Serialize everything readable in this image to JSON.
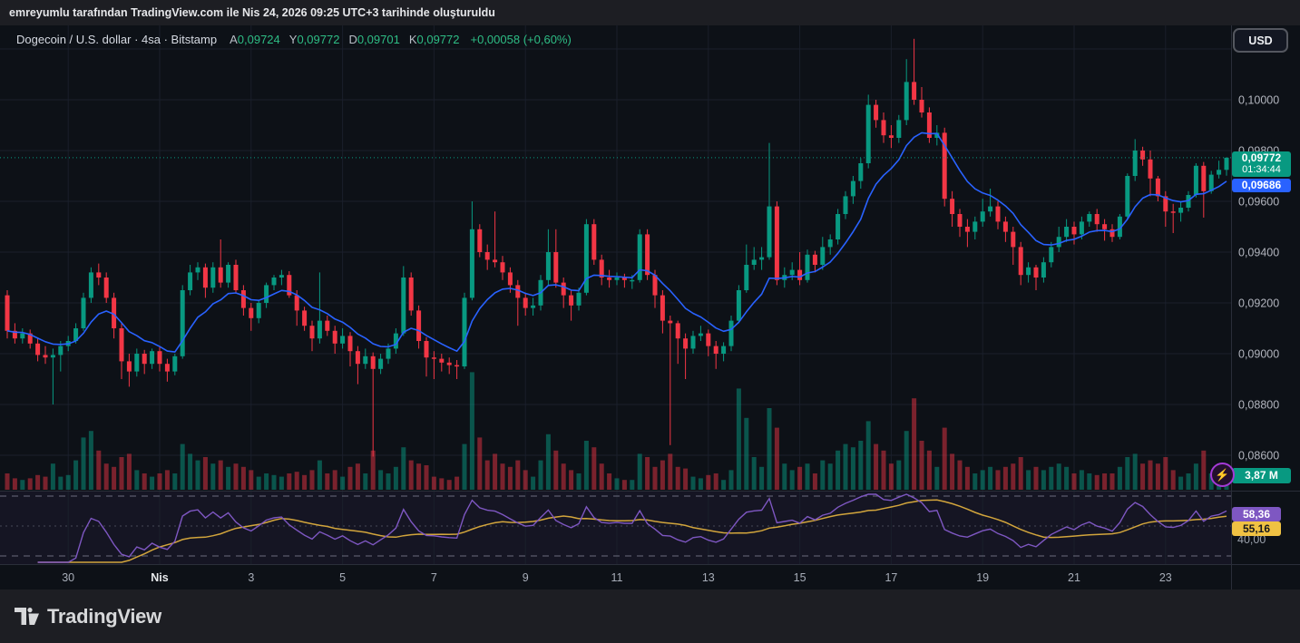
{
  "attribution": "emreyumlu tarafından TradingView.com ile Nis 24, 2026 09:25 UTC+3 tarihinde oluşturuldu",
  "currency_button": "USD",
  "symbol_row": {
    "title": "Dogecoin / U.S. dollar · 4sa · Bitstamp",
    "ohlc": [
      {
        "k": "A",
        "v": "0,09724"
      },
      {
        "k": "Y",
        "v": "0,09772"
      },
      {
        "k": "D",
        "v": "0,09701"
      },
      {
        "k": "K",
        "v": "0,09772"
      }
    ],
    "change": "+0,00058 (+0,60%)"
  },
  "price_axis": {
    "current_badge": {
      "price": "0,09772",
      "countdown": "01:34:44"
    },
    "ma_badge": "0,09686",
    "volume_badge": "3,87 M",
    "lower_axis_label": "40,00"
  },
  "rsi_badges": {
    "rsi": "58,36",
    "rsi_ma": "55,16"
  },
  "footer": {
    "brand": "TradingView"
  },
  "colors": {
    "up": "#089981",
    "down": "#f23645",
    "vol_up": "rgba(8,153,129,0.5)",
    "vol_down": "rgba(242,54,69,0.48)",
    "ma_blue": "#2962ff",
    "rsi_purple": "#7e57c2",
    "rsi_yellow": "#d2a53c",
    "price_line": "#089981",
    "grid": "#1a1f2b",
    "separator": "#2a2e39",
    "axis_text": "#b2b5be",
    "axis_text_dim": "#a7adb8",
    "axis_text_major": "#e8eaed",
    "rsi_pane_bg": "rgba(126,87,194,0.07)",
    "rsi_band_dash": "rgba(178,181,200,0.55)",
    "rsi_mid_dash": "rgba(134,137,150,0.45)"
  },
  "chart_data": {
    "type": "candlestick+volume+rsi",
    "pair": "DOGE/USD",
    "exchange": "Bitstamp",
    "interval": "4sa",
    "unit": 1e-05,
    "ylim": [
      0.0855,
      0.103
    ],
    "current_price": 9772,
    "ma_value": 9686,
    "volume_current_m": 3.87,
    "rsi_current": 58.36,
    "rsi_ma_current": 55.16,
    "rsi_levels": [
      70,
      50,
      30
    ],
    "y_labels": [
      {
        "u": 10000,
        "t": "0,10000"
      },
      {
        "u": 9800,
        "t": "0,09800"
      },
      {
        "u": 9600,
        "t": "0,09600"
      },
      {
        "u": 9400,
        "t": "0,09400"
      },
      {
        "u": 9200,
        "t": "0,09200"
      },
      {
        "u": 9000,
        "t": "0,09000"
      },
      {
        "u": 8800,
        "t": "0,08800"
      },
      {
        "u": 8600,
        "t": "0,08600"
      }
    ],
    "grid_levels": [
      10200,
      10000,
      9800,
      9600,
      9400,
      9200,
      9000,
      8800,
      8600
    ],
    "x_labels": [
      {
        "label": "30",
        "index": 8,
        "major": false
      },
      {
        "label": "Nis",
        "index": 20,
        "major": true
      },
      {
        "label": "3",
        "index": 32,
        "major": false
      },
      {
        "label": "5",
        "index": 44,
        "major": false
      },
      {
        "label": "7",
        "index": 56,
        "major": false
      },
      {
        "label": "9",
        "index": 68,
        "major": false
      },
      {
        "label": "11",
        "index": 80,
        "major": false
      },
      {
        "label": "13",
        "index": 92,
        "major": false
      },
      {
        "label": "15",
        "index": 104,
        "major": false
      },
      {
        "label": "17",
        "index": 116,
        "major": false
      },
      {
        "label": "19",
        "index": 128,
        "major": false
      },
      {
        "label": "21",
        "index": 140,
        "major": false
      },
      {
        "label": "23",
        "index": 152,
        "major": false
      }
    ],
    "candles": [
      [
        9230,
        9250,
        9060,
        9090,
        5
      ],
      [
        9090,
        9120,
        9040,
        9060,
        3.5
      ],
      [
        9060,
        9100,
        9040,
        9080,
        3
      ],
      [
        9080,
        9095,
        9020,
        9040,
        3.5
      ],
      [
        9040,
        9060,
        8970,
        8995,
        4.5
      ],
      [
        8995,
        9030,
        8960,
        8985,
        4
      ],
      [
        8985,
        9020,
        8800,
        8995,
        8
      ],
      [
        8995,
        9050,
        8930,
        9030,
        4
      ],
      [
        9030,
        9070,
        9010,
        9050,
        4.5
      ],
      [
        9050,
        9120,
        9040,
        9100,
        9
      ],
      [
        9100,
        9240,
        9090,
        9220,
        16
      ],
      [
        9220,
        9340,
        9200,
        9320,
        18
      ],
      [
        9320,
        9355,
        9270,
        9300,
        12
      ],
      [
        9300,
        9320,
        9200,
        9220,
        8
      ],
      [
        9220,
        9240,
        9060,
        9100,
        7
      ],
      [
        9100,
        9120,
        8900,
        8970,
        10
      ],
      [
        8970,
        9000,
        8870,
        8930,
        11
      ],
      [
        8930,
        9020,
        8910,
        9000,
        6
      ],
      [
        9000,
        9015,
        8920,
        8960,
        5
      ],
      [
        8960,
        9020,
        8940,
        9010,
        4
      ],
      [
        9010,
        9030,
        8930,
        8960,
        5
      ],
      [
        8960,
        8980,
        8890,
        8930,
        6
      ],
      [
        8930,
        9000,
        8915,
        8990,
        5
      ],
      [
        8990,
        9270,
        8980,
        9250,
        14
      ],
      [
        9250,
        9350,
        9230,
        9320,
        11
      ],
      [
        9320,
        9360,
        9290,
        9340,
        9
      ],
      [
        9340,
        9355,
        9220,
        9260,
        10
      ],
      [
        9260,
        9360,
        9240,
        9340,
        8
      ],
      [
        9340,
        9450,
        9260,
        9280,
        9
      ],
      [
        9280,
        9360,
        9260,
        9350,
        7
      ],
      [
        9350,
        9370,
        9240,
        9250,
        8
      ],
      [
        9250,
        9270,
        9150,
        9180,
        7
      ],
      [
        9180,
        9200,
        9090,
        9140,
        6
      ],
      [
        9140,
        9210,
        9120,
        9200,
        4
      ],
      [
        9200,
        9280,
        9180,
        9270,
        5
      ],
      [
        9270,
        9310,
        9250,
        9300,
        4.5
      ],
      [
        9300,
        9330,
        9270,
        9310,
        4
      ],
      [
        9310,
        9325,
        9220,
        9230,
        5
      ],
      [
        9230,
        9250,
        9110,
        9170,
        5.5
      ],
      [
        9170,
        9185,
        9090,
        9110,
        4.5
      ],
      [
        9110,
        9130,
        9010,
        9060,
        6
      ],
      [
        9060,
        9320,
        9040,
        9130,
        9
      ],
      [
        9130,
        9150,
        9070,
        9090,
        5
      ],
      [
        9090,
        9110,
        9000,
        9040,
        6
      ],
      [
        9040,
        9100,
        9020,
        9070,
        4
      ],
      [
        9070,
        9085,
        8950,
        9010,
        7
      ],
      [
        9010,
        9030,
        8880,
        8960,
        8
      ],
      [
        8960,
        9020,
        8940,
        8990,
        5
      ],
      [
        8990,
        9005,
        8595,
        8940,
        12
      ],
      [
        8940,
        9000,
        8920,
        8980,
        6
      ],
      [
        8980,
        9040,
        8960,
        9020,
        5
      ],
      [
        9020,
        9100,
        9000,
        9080,
        7
      ],
      [
        9080,
        9345,
        9070,
        9300,
        13
      ],
      [
        9300,
        9320,
        9150,
        9170,
        9
      ],
      [
        9170,
        9190,
        9020,
        9050,
        8
      ],
      [
        9050,
        9065,
        8910,
        8985,
        7.5
      ],
      [
        8985,
        9010,
        8900,
        8980,
        4
      ],
      [
        8980,
        9000,
        8930,
        8965,
        3.5
      ],
      [
        8965,
        8985,
        8920,
        8955,
        3
      ],
      [
        8955,
        8975,
        8900,
        8950,
        4
      ],
      [
        8950,
        9240,
        8940,
        9220,
        14
      ],
      [
        9220,
        9600,
        9210,
        9490,
        36
      ],
      [
        9490,
        9510,
        9380,
        9400,
        16
      ],
      [
        9400,
        9430,
        9330,
        9370,
        9
      ],
      [
        9370,
        9560,
        9340,
        9360,
        11
      ],
      [
        9360,
        9385,
        9290,
        9320,
        8
      ],
      [
        9320,
        9340,
        9240,
        9270,
        7
      ],
      [
        9270,
        9290,
        9110,
        9220,
        9
      ],
      [
        9220,
        9240,
        9150,
        9180,
        6
      ],
      [
        9180,
        9220,
        9150,
        9190,
        4
      ],
      [
        9190,
        9310,
        9170,
        9290,
        9
      ],
      [
        9290,
        9490,
        9270,
        9400,
        17
      ],
      [
        9400,
        9490,
        9260,
        9280,
        12
      ],
      [
        9280,
        9300,
        9180,
        9230,
        8
      ],
      [
        9230,
        9250,
        9130,
        9190,
        6
      ],
      [
        9190,
        9260,
        9170,
        9240,
        5
      ],
      [
        9240,
        9530,
        9230,
        9510,
        15
      ],
      [
        9510,
        9530,
        9350,
        9370,
        13
      ],
      [
        9370,
        9390,
        9270,
        9300,
        8
      ],
      [
        9300,
        9330,
        9260,
        9290,
        5
      ],
      [
        9290,
        9320,
        9270,
        9300,
        3.5
      ],
      [
        9300,
        9315,
        9260,
        9290,
        3
      ],
      [
        9290,
        9310,
        9255,
        9290,
        3
      ],
      [
        9290,
        9490,
        9280,
        9470,
        11
      ],
      [
        9470,
        9490,
        9290,
        9310,
        10
      ],
      [
        9310,
        9330,
        9180,
        9230,
        7
      ],
      [
        9230,
        9250,
        9080,
        9130,
        9
      ],
      [
        9130,
        9150,
        8640,
        9120,
        11
      ],
      [
        9120,
        9130,
        8960,
        9060,
        7
      ],
      [
        9060,
        9080,
        8900,
        9020,
        6.5
      ],
      [
        9020,
        9090,
        9000,
        9070,
        4
      ],
      [
        9070,
        9110,
        9050,
        9080,
        3.5
      ],
      [
        9080,
        9095,
        8990,
        9030,
        4.5
      ],
      [
        9030,
        9050,
        8940,
        9000,
        5
      ],
      [
        9000,
        9045,
        8970,
        9030,
        3
      ],
      [
        9030,
        9150,
        9010,
        9130,
        6
      ],
      [
        9130,
        9270,
        9120,
        9250,
        31
      ],
      [
        9250,
        9430,
        9240,
        9350,
        22
      ],
      [
        9350,
        9420,
        9330,
        9370,
        10
      ],
      [
        9370,
        9420,
        9330,
        9380,
        7
      ],
      [
        9380,
        9830,
        9370,
        9580,
        25
      ],
      [
        9580,
        9600,
        9270,
        9290,
        19
      ],
      [
        9290,
        9340,
        9260,
        9310,
        8
      ],
      [
        9310,
        9360,
        9290,
        9330,
        6
      ],
      [
        9330,
        9400,
        9270,
        9290,
        7
      ],
      [
        9290,
        9410,
        9280,
        9390,
        8
      ],
      [
        9390,
        9405,
        9320,
        9350,
        5
      ],
      [
        9350,
        9460,
        9330,
        9420,
        9
      ],
      [
        9420,
        9470,
        9390,
        9450,
        8
      ],
      [
        9450,
        9570,
        9430,
        9550,
        12
      ],
      [
        9550,
        9640,
        9530,
        9620,
        14
      ],
      [
        9620,
        9700,
        9590,
        9680,
        13
      ],
      [
        9680,
        9770,
        9650,
        9750,
        15
      ],
      [
        9750,
        10020,
        9730,
        9980,
        21
      ],
      [
        9980,
        10000,
        9890,
        9920,
        14
      ],
      [
        9920,
        9950,
        9830,
        9860,
        12
      ],
      [
        9860,
        9900,
        9810,
        9850,
        8
      ],
      [
        9850,
        9940,
        9830,
        9920,
        9
      ],
      [
        9920,
        10160,
        9900,
        10070,
        18
      ],
      [
        10070,
        10240,
        9980,
        10000,
        28
      ],
      [
        10000,
        10050,
        9930,
        9950,
        15
      ],
      [
        9950,
        9970,
        9830,
        9850,
        12
      ],
      [
        9850,
        9900,
        9820,
        9870,
        7
      ],
      [
        9870,
        9890,
        9580,
        9610,
        19
      ],
      [
        9610,
        9640,
        9500,
        9550,
        11
      ],
      [
        9550,
        9570,
        9460,
        9500,
        9
      ],
      [
        9500,
        9530,
        9420,
        9480,
        7
      ],
      [
        9480,
        9540,
        9450,
        9520,
        5
      ],
      [
        9520,
        9610,
        9500,
        9560,
        6
      ],
      [
        9560,
        9650,
        9540,
        9580,
        7
      ],
      [
        9580,
        9600,
        9490,
        9520,
        6
      ],
      [
        9520,
        9540,
        9440,
        9480,
        7
      ],
      [
        9480,
        9500,
        9350,
        9420,
        8
      ],
      [
        9420,
        9440,
        9270,
        9310,
        10
      ],
      [
        9310,
        9360,
        9280,
        9340,
        6
      ],
      [
        9340,
        9350,
        9250,
        9300,
        7
      ],
      [
        9300,
        9380,
        9280,
        9360,
        6
      ],
      [
        9360,
        9440,
        9340,
        9420,
        7
      ],
      [
        9420,
        9500,
        9400,
        9460,
        8
      ],
      [
        9460,
        9530,
        9440,
        9500,
        7
      ],
      [
        9500,
        9520,
        9430,
        9470,
        5
      ],
      [
        9470,
        9540,
        9450,
        9520,
        6
      ],
      [
        9520,
        9560,
        9500,
        9550,
        5
      ],
      [
        9550,
        9570,
        9480,
        9510,
        4.5
      ],
      [
        9510,
        9530,
        9445,
        9490,
        5
      ],
      [
        9490,
        9510,
        9440,
        9460,
        5
      ],
      [
        9460,
        9550,
        9450,
        9540,
        7
      ],
      [
        9540,
        9710,
        9530,
        9700,
        10
      ],
      [
        9700,
        9845,
        9680,
        9800,
        11
      ],
      [
        9800,
        9815,
        9740,
        9765,
        8
      ],
      [
        9765,
        9800,
        9620,
        9690,
        9
      ],
      [
        9690,
        9700,
        9600,
        9620,
        8
      ],
      [
        9620,
        9640,
        9500,
        9560,
        10
      ],
      [
        9560,
        9590,
        9475,
        9555,
        6
      ],
      [
        9555,
        9600,
        9520,
        9575,
        4
      ],
      [
        9575,
        9640,
        9560,
        9625,
        5
      ],
      [
        9625,
        9750,
        9615,
        9740,
        8
      ],
      [
        9740,
        9755,
        9536,
        9640,
        12
      ],
      [
        9640,
        9720,
        9630,
        9705,
        5
      ],
      [
        9705,
        9760,
        9690,
        9724,
        6
      ],
      [
        9724,
        9772,
        9701,
        9772,
        3.9
      ]
    ]
  }
}
